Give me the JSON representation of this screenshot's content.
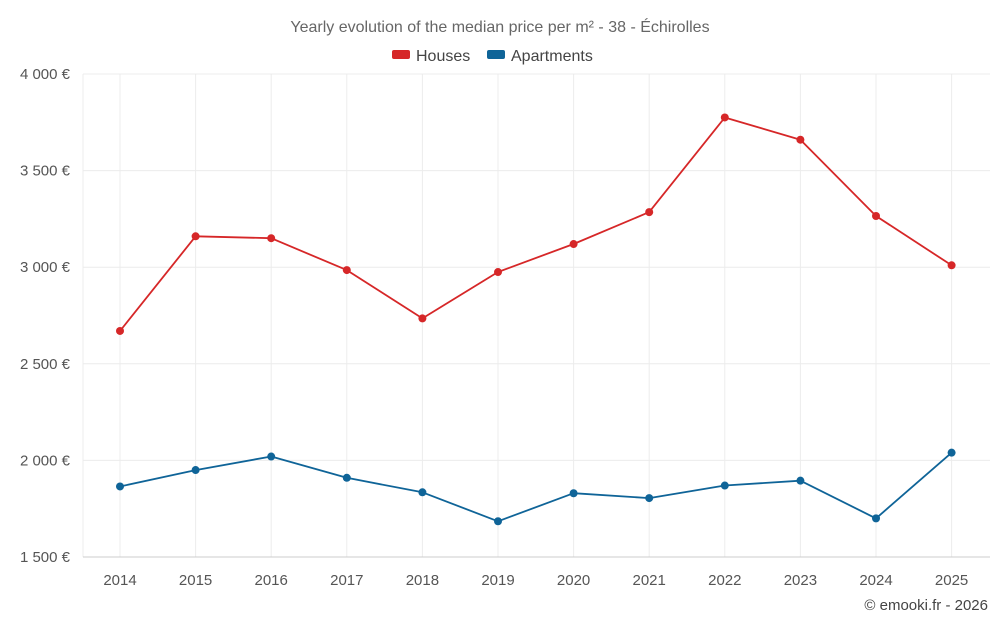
{
  "chart_data": {
    "type": "line",
    "title": "Yearly evolution of the median price per m² - 38 - Échirolles",
    "categories": [
      "2014",
      "2015",
      "2016",
      "2017",
      "2018",
      "2019",
      "2020",
      "2021",
      "2022",
      "2023",
      "2024",
      "2025"
    ],
    "series": [
      {
        "name": "Houses",
        "color": "#d62728",
        "values": [
          2670,
          3160,
          3150,
          2985,
          2735,
          2975,
          3120,
          3285,
          3775,
          3660,
          3265,
          3010
        ]
      },
      {
        "name": "Apartments",
        "color": "#0f6498",
        "values": [
          1865,
          1950,
          2020,
          1910,
          1835,
          1685,
          1830,
          1805,
          1870,
          1895,
          1700,
          2040
        ]
      }
    ],
    "ylim": [
      1500,
      4000
    ],
    "yticks": [
      1500,
      2000,
      2500,
      3000,
      3500,
      4000
    ],
    "ytick_labels": [
      "1 500 €",
      "2 000 €",
      "2 500 €",
      "3 000 €",
      "3 500 €",
      "4 000 €"
    ],
    "xlabel": "",
    "ylabel": "",
    "grid": true,
    "legend_position": "top-center"
  },
  "credit": "© emooki.fr - 2026"
}
